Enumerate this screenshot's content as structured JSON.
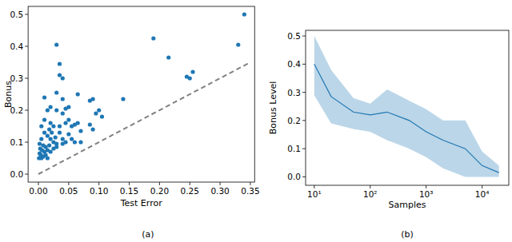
{
  "chart_data": [
    {
      "type": "scatter",
      "caption": "(a)",
      "x_label": "Test Error",
      "y_label": "Bonus",
      "xlim": [
        -0.017,
        0.357
      ],
      "ylim": [
        -0.025,
        0.525
      ],
      "xticks": [
        {
          "value": 0,
          "label": "0.00"
        },
        {
          "value": 0.05,
          "label": "0.05"
        },
        {
          "value": 0.1,
          "label": "0.10"
        },
        {
          "value": 0.15,
          "label": "0.15"
        },
        {
          "value": 0.2,
          "label": "0.20"
        },
        {
          "value": 0.25,
          "label": "0.25"
        },
        {
          "value": 0.3,
          "label": "0.30"
        },
        {
          "value": 0.35,
          "label": "0.35"
        }
      ],
      "yticks": [
        {
          "value": 0,
          "label": "0.0"
        },
        0.1,
        0.2,
        0.3,
        0.4,
        0.5
      ],
      "series": [
        {
          "type": "scatter",
          "marker": "circle",
          "color": "#1f77b4",
          "x": [
            0.34,
            0.33,
            0.19,
            0.215,
            0.255,
            0.245,
            0.25,
            0.03,
            0.035,
            0.04,
            0.035,
            0.14,
            0.085,
            0.09,
            0.1,
            0.105,
            0.095,
            0.085,
            0.09,
            0.065,
            0.03,
            0.04,
            0.01,
            0.015,
            0.02,
            0.03,
            0.045,
            0.05,
            0.04,
            0.05,
            0.045,
            0.055,
            0.06,
            0.065,
            0.07,
            0.05,
            0.04,
            0.035,
            0.025,
            0.02,
            0.01,
            0.005,
            0.01,
            0.015,
            0.02,
            0.025,
            0.03,
            0.04,
            0.045,
            0.06,
            0.005,
            0.002,
            0.008,
            0.012,
            0.018,
            0.003,
            0.006,
            0.01,
            0.015,
            0.02,
            0.002,
            0.004,
            0.008,
            0.012,
            0.001,
            0.005,
            0.015,
            0.025,
            0.03,
            0.022,
            0.028,
            0.018,
            0.035,
            0.055,
            0.07
          ],
          "values": [
            0.5,
            0.405,
            0.425,
            0.365,
            0.32,
            0.305,
            0.3,
            0.405,
            0.345,
            0.3,
            0.31,
            0.235,
            0.23,
            0.235,
            0.2,
            0.18,
            0.19,
            0.155,
            0.14,
            0.25,
            0.255,
            0.235,
            0.24,
            0.2,
            0.21,
            0.2,
            0.205,
            0.21,
            0.19,
            0.17,
            0.16,
            0.15,
            0.155,
            0.16,
            0.135,
            0.125,
            0.11,
            0.13,
            0.15,
            0.16,
            0.17,
            0.15,
            0.13,
            0.12,
            0.11,
            0.1,
            0.095,
            0.095,
            0.1,
            0.1,
            0.11,
            0.095,
            0.09,
            0.085,
            0.09,
            0.08,
            0.075,
            0.07,
            0.075,
            0.07,
            0.065,
            0.06,
            0.055,
            0.06,
            0.05,
            0.05,
            0.05,
            0.08,
            0.085,
            0.13,
            0.115,
            0.14,
            0.15,
            0.11,
            0.1
          ]
        },
        {
          "type": "line",
          "line_style": "dashed",
          "color": "#808080",
          "x": [
            0,
            0.35
          ],
          "values": [
            0,
            0.35
          ]
        }
      ]
    },
    {
      "type": "line",
      "caption": "(b)",
      "x_label": "Samples",
      "y_label": "Bonus Level",
      "log": "x",
      "xlim": [
        7,
        30000
      ],
      "ylim": [
        -0.03,
        0.52
      ],
      "xticks": [
        {
          "value": 10,
          "label": "10¹"
        },
        {
          "value": 100,
          "label": "10²"
        },
        {
          "value": 1000,
          "label": "10³"
        },
        {
          "value": 10000,
          "label": "10⁴"
        }
      ],
      "yticks": [
        {
          "value": 0,
          "label": "0.0"
        },
        0.1,
        0.2,
        0.3,
        0.4,
        0.5
      ],
      "series": [
        {
          "type": "line",
          "color": "#1f77b4",
          "x": [
            10,
            20,
            50,
            100,
            200,
            500,
            1000,
            2000,
            5000,
            10000,
            20000
          ],
          "values": [
            0.4,
            0.285,
            0.23,
            0.22,
            0.23,
            0.2,
            0.16,
            0.13,
            0.1,
            0.04,
            0.015
          ],
          "lower": [
            0.29,
            0.19,
            0.17,
            0.16,
            0.13,
            0.1,
            0.07,
            0.03,
            0.0,
            0.0,
            0.0
          ],
          "upper": [
            0.5,
            0.38,
            0.28,
            0.26,
            0.31,
            0.27,
            0.24,
            0.2,
            0.2,
            0.09,
            0.04
          ]
        }
      ]
    }
  ]
}
